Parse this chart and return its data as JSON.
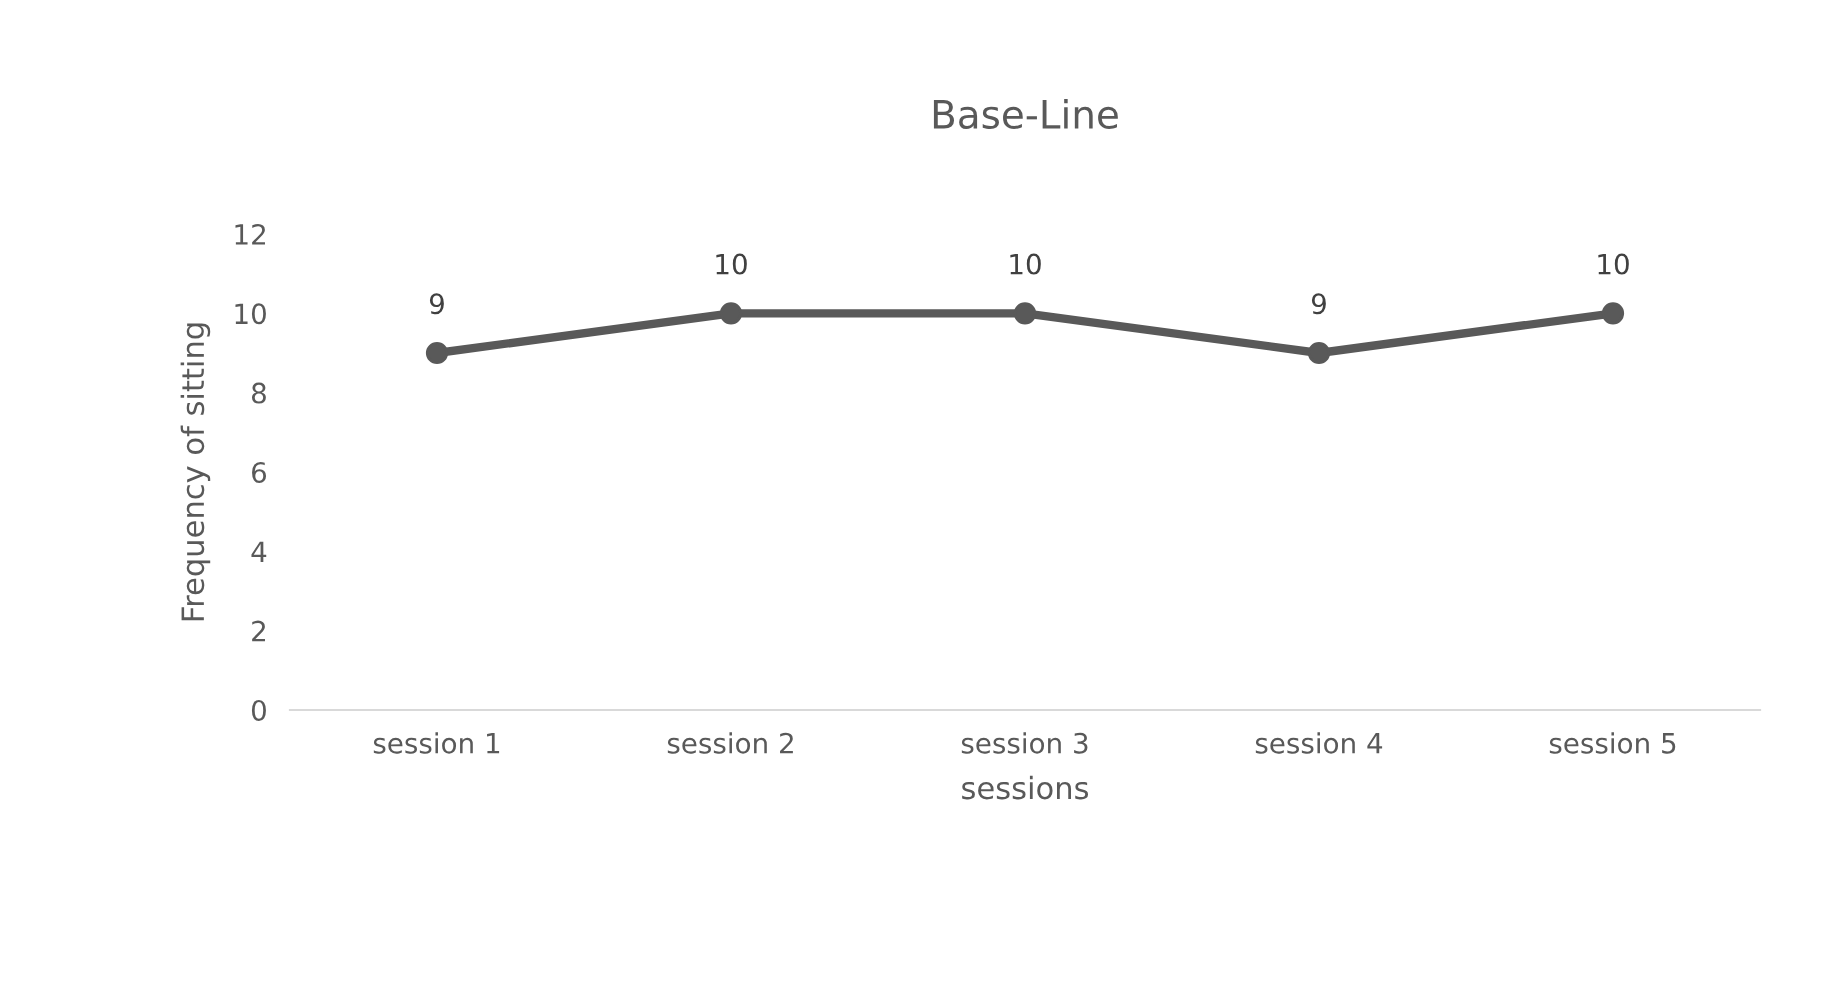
{
  "chart_data": {
    "type": "line",
    "title": "Base-Line",
    "xlabel": "sessions",
    "ylabel": "Frequency of sitting",
    "categories": [
      "session 1",
      "session 2",
      "session 3",
      "session 4",
      "session 5"
    ],
    "series": [
      {
        "color": "#595959",
        "values": [
          9,
          10,
          10,
          9,
          10
        ]
      }
    ],
    "ylim": [
      0,
      12
    ],
    "yticks": [
      0,
      2,
      4,
      6,
      8,
      10,
      12
    ],
    "grid": false,
    "legend": false,
    "marker": "circle",
    "line_style": "solid",
    "data_labels": true
  }
}
